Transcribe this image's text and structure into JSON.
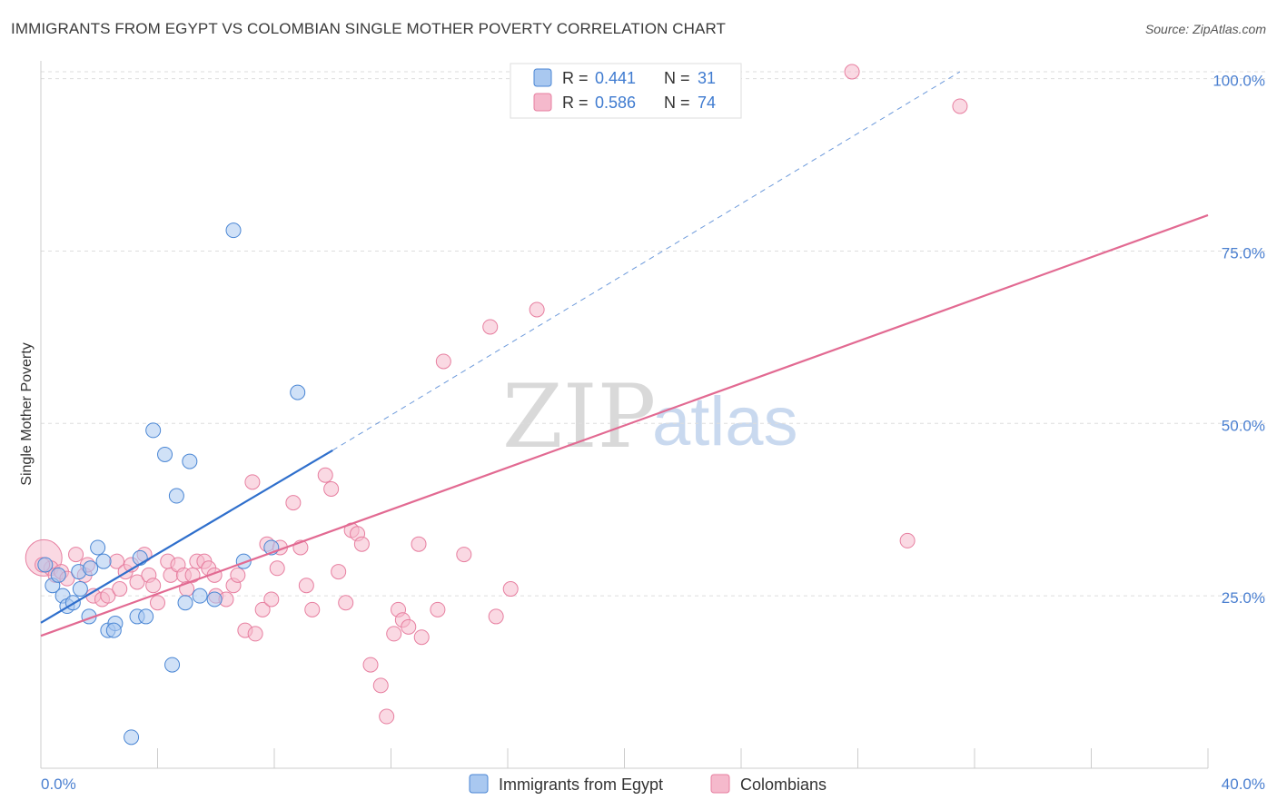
{
  "header": {
    "title": "IMMIGRANTS FROM EGYPT VS COLOMBIAN SINGLE MOTHER POVERTY CORRELATION CHART",
    "source": "Source: ZipAtlas.com"
  },
  "watermark": {
    "zip": "ZIP",
    "atlas": "atlas"
  },
  "legend": {
    "r_label": "R =",
    "n_label": "N =",
    "entries": [
      {
        "r": "0.441",
        "n": "31",
        "color": "#a9c8f0"
      },
      {
        "r": "0.586",
        "n": "74",
        "color": "#f5b9cc"
      }
    ]
  },
  "chart_data": {
    "type": "scatter",
    "title": "IMMIGRANTS FROM EGYPT VS COLOMBIAN SINGLE MOTHER POVERTY CORRELATION CHART",
    "xlabel": "",
    "ylabel": "Single Mother Poverty",
    "xlim": [
      0,
      40
    ],
    "ylim": [
      0,
      101
    ],
    "x_tick_labels": [
      "0.0%",
      "40.0%"
    ],
    "y_ticks": [
      25,
      50,
      75,
      100
    ],
    "y_tick_labels": [
      "25.0%",
      "50.0%",
      "75.0%",
      "100.0%"
    ],
    "grid": true,
    "legend_position": "top-center",
    "series": [
      {
        "name": "Immigrants from Egypt",
        "color": "#a9c8f0",
        "stroke": "#4a86d4",
        "line_color": "#2f6fcc",
        "trend": {
          "x": [
            0,
            10
          ],
          "y": [
            21.1,
            46.1
          ],
          "dashed_to": [
            31.5,
            101
          ]
        },
        "points": [
          [
            0.15,
            29.5
          ],
          [
            0.4,
            26.5
          ],
          [
            0.6,
            28.0
          ],
          [
            0.75,
            25.0
          ],
          [
            0.9,
            23.5
          ],
          [
            1.1,
            24.0
          ],
          [
            1.3,
            28.5
          ],
          [
            1.35,
            26.0
          ],
          [
            1.7,
            29.0
          ],
          [
            1.65,
            22.0
          ],
          [
            1.95,
            32.0
          ],
          [
            2.15,
            30.0
          ],
          [
            2.3,
            20.0
          ],
          [
            2.55,
            21.0
          ],
          [
            2.5,
            20.0
          ],
          [
            3.1,
            4.5
          ],
          [
            3.3,
            22.0
          ],
          [
            3.4,
            30.5
          ],
          [
            3.6,
            22.0
          ],
          [
            3.85,
            49.0
          ],
          [
            4.25,
            45.5
          ],
          [
            4.5,
            15.0
          ],
          [
            4.65,
            39.5
          ],
          [
            4.95,
            24.0
          ],
          [
            5.1,
            44.5
          ],
          [
            5.45,
            25.0
          ],
          [
            5.95,
            24.5
          ],
          [
            6.6,
            78.0
          ],
          [
            6.95,
            30.0
          ],
          [
            7.9,
            32.0
          ],
          [
            8.8,
            54.5
          ]
        ]
      },
      {
        "name": "Colombians",
        "color": "#f5b9cc",
        "stroke": "#e77fa0",
        "line_color": "#e26a92",
        "trend": {
          "x": [
            0,
            40
          ],
          "y": [
            19.2,
            80.2
          ]
        },
        "points": [
          [
            0.1,
            30.5
          ],
          [
            0.35,
            29.0
          ],
          [
            0.5,
            28.0
          ],
          [
            0.7,
            28.5
          ],
          [
            0.9,
            27.5
          ],
          [
            1.2,
            31.0
          ],
          [
            1.5,
            28.0
          ],
          [
            1.6,
            29.5
          ],
          [
            1.8,
            25.0
          ],
          [
            2.1,
            24.5
          ],
          [
            2.3,
            25.0
          ],
          [
            2.6,
            30.0
          ],
          [
            2.7,
            26.0
          ],
          [
            2.9,
            28.5
          ],
          [
            3.1,
            29.5
          ],
          [
            3.3,
            27.0
          ],
          [
            3.55,
            31.0
          ],
          [
            3.7,
            28.0
          ],
          [
            3.85,
            26.5
          ],
          [
            4.0,
            24.0
          ],
          [
            4.35,
            30.0
          ],
          [
            4.45,
            28.0
          ],
          [
            4.7,
            29.5
          ],
          [
            4.9,
            28.0
          ],
          [
            5.0,
            26.0
          ],
          [
            5.2,
            28.0
          ],
          [
            5.35,
            30.0
          ],
          [
            5.6,
            30.0
          ],
          [
            5.75,
            29.0
          ],
          [
            5.95,
            28.0
          ],
          [
            6.0,
            25.0
          ],
          [
            6.35,
            24.5
          ],
          [
            6.6,
            26.5
          ],
          [
            6.75,
            28.0
          ],
          [
            7.0,
            20.0
          ],
          [
            7.25,
            41.5
          ],
          [
            7.35,
            19.5
          ],
          [
            7.6,
            23.0
          ],
          [
            7.75,
            32.5
          ],
          [
            7.9,
            24.5
          ],
          [
            8.1,
            29.0
          ],
          [
            8.2,
            32.0
          ],
          [
            8.65,
            38.5
          ],
          [
            8.9,
            32.0
          ],
          [
            9.1,
            26.5
          ],
          [
            9.3,
            23.0
          ],
          [
            9.75,
            42.5
          ],
          [
            9.95,
            40.5
          ],
          [
            10.2,
            28.5
          ],
          [
            10.45,
            24.0
          ],
          [
            10.65,
            34.5
          ],
          [
            10.85,
            34.0
          ],
          [
            11.0,
            32.5
          ],
          [
            11.3,
            15.0
          ],
          [
            11.65,
            12.0
          ],
          [
            11.85,
            7.5
          ],
          [
            12.1,
            19.5
          ],
          [
            12.25,
            23.0
          ],
          [
            12.4,
            21.5
          ],
          [
            12.6,
            20.5
          ],
          [
            12.95,
            32.5
          ],
          [
            13.05,
            19.0
          ],
          [
            13.6,
            23.0
          ],
          [
            13.8,
            59.0
          ],
          [
            14.5,
            31.0
          ],
          [
            15.4,
            64.0
          ],
          [
            15.6,
            22.0
          ],
          [
            16.1,
            26.0
          ],
          [
            17.0,
            66.5
          ],
          [
            18.1,
            101.0
          ],
          [
            27.8,
            101.0
          ],
          [
            29.7,
            33.0
          ],
          [
            31.5,
            96.0
          ],
          [
            0.05,
            29.5
          ]
        ]
      }
    ]
  },
  "bottom_legend": [
    {
      "label": "Immigrants from Egypt"
    },
    {
      "label": "Colombians"
    }
  ]
}
